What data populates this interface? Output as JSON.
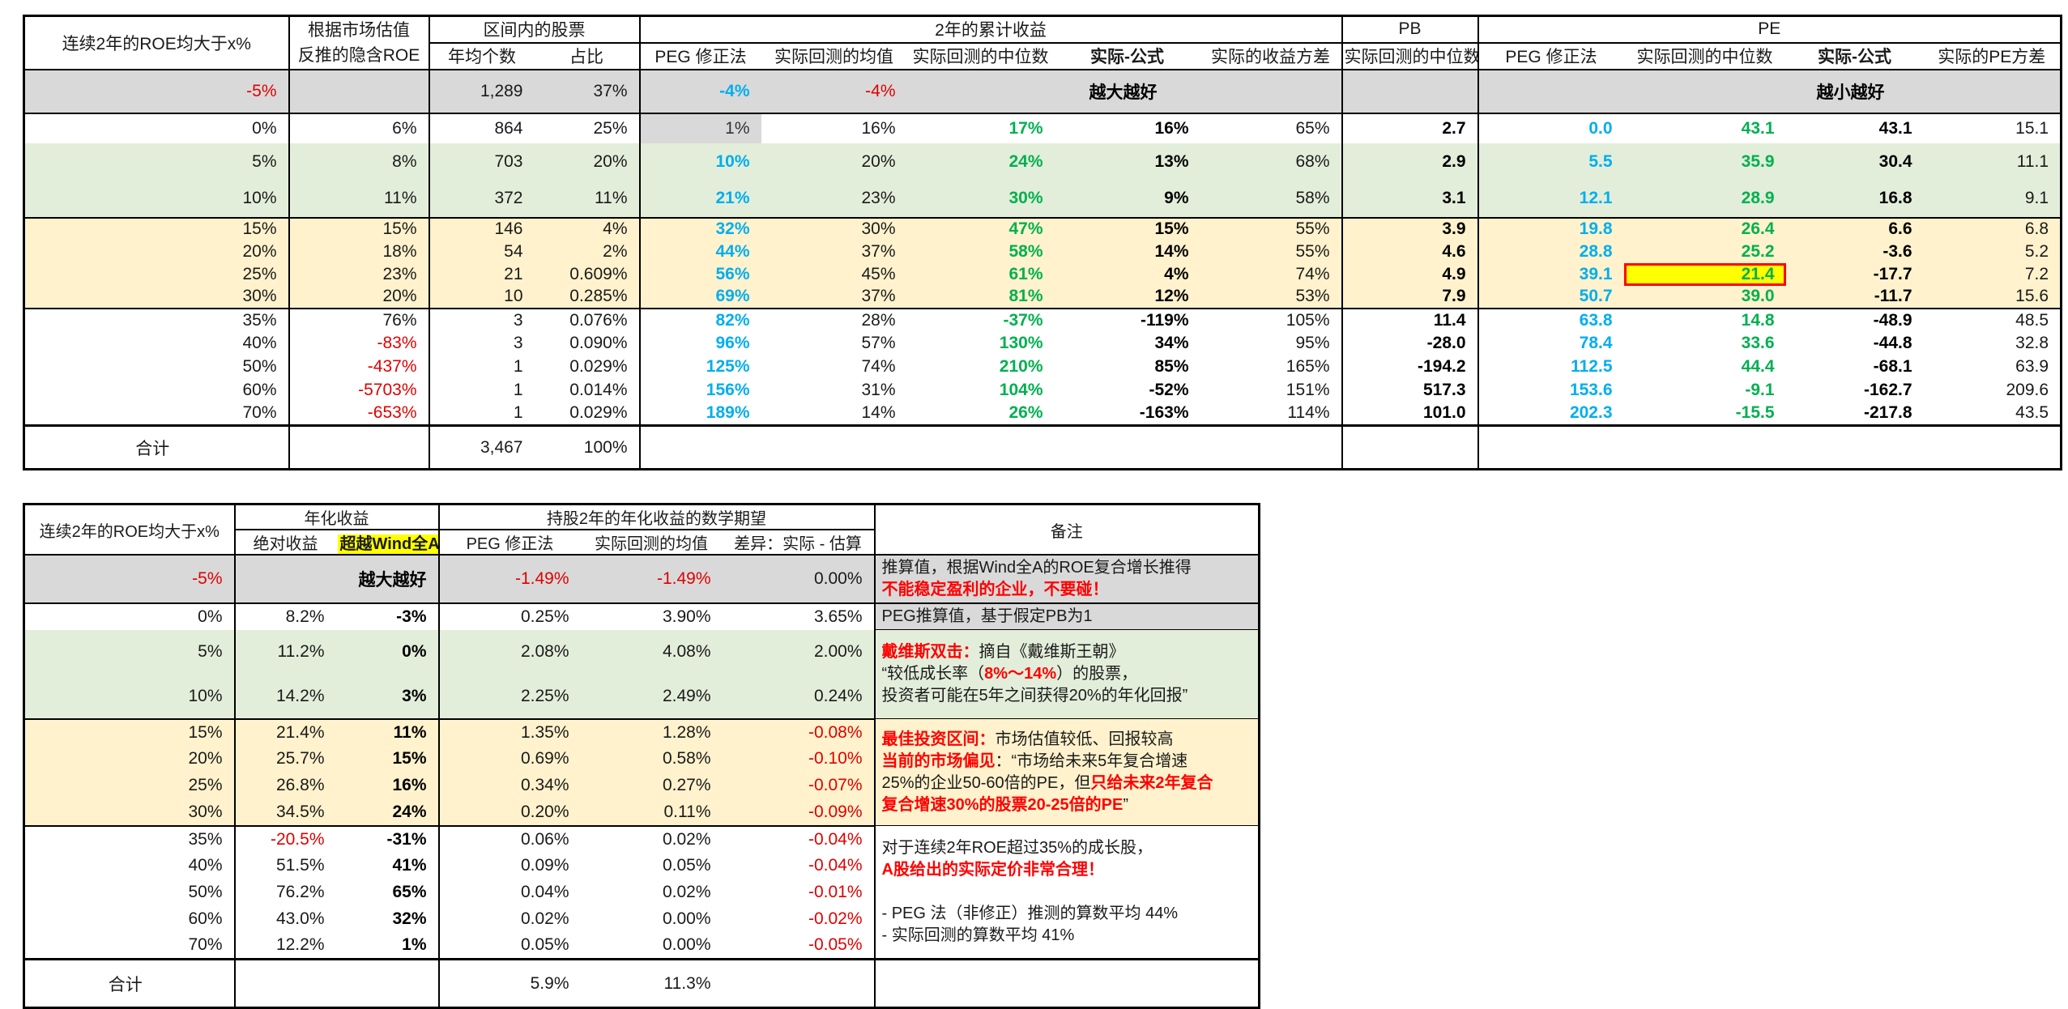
{
  "colors": {
    "positive_green": "#00b050",
    "estimate_blue": "#00aeef",
    "negative_red": "#e00000",
    "note_red": "#ff0000",
    "section_gray": "#d9d9d9",
    "section_green": "#e3eeda",
    "section_yellow": "#fff2cc",
    "highlight_yellow": "#ffff00",
    "highlight_border_red": "#ff0000"
  },
  "table1": {
    "header": {
      "col_roe": "连续2年的ROE均大于x%",
      "col_implied_l1": "根据市场估值",
      "col_implied_l2": "反推的隐含ROE",
      "grp_stocks": "区间内的股票",
      "col_count": "年均个数",
      "col_pct": "占比",
      "grp_cum": "2年的累计收益",
      "col_peg": "PEG 修正法",
      "col_mean": "实际回测的均值",
      "col_median": "实际回测的中位数",
      "col_diff": "实际-公式",
      "col_var": "实际的收益方差",
      "grp_pb": "PB",
      "col_pb_median": "实际回测的中位数",
      "grp_pe": "PE",
      "col_pe_peg": "PEG 修正法",
      "col_pe_median": "实际回测的中位数",
      "col_pe_diff": "实际-公式",
      "col_pe_var": "实际的PE方差"
    },
    "rows": [
      {
        "roe": "-5%",
        "implied": "",
        "count": "1,289",
        "pct": "37%",
        "peg": "-4%",
        "mean": "-4%",
        "median": "",
        "diff": "越大越好",
        "var": "",
        "pb": "",
        "pe_peg": "",
        "pe_median": "",
        "pe_diff": "越小越好",
        "pe_var": "",
        "bg": "gray",
        "flags": [
          "note-row",
          "sec-end"
        ]
      },
      {
        "roe": "0%",
        "implied": "6%",
        "count": "864",
        "pct": "25%",
        "peg": "1%",
        "mean": "16%",
        "median": "17%",
        "diff": "16%",
        "var": "65%",
        "pb": "2.7",
        "pe_peg": "0.0",
        "pe_median": "43.1",
        "pe_diff": "43.1",
        "pe_var": "15.1",
        "bg": "white",
        "cell_bg": {
          "peg": "gray"
        }
      },
      {
        "roe": "5%",
        "implied": "8%",
        "count": "703",
        "pct": "20%",
        "peg": "10%",
        "mean": "20%",
        "median": "24%",
        "diff": "13%",
        "var": "68%",
        "pb": "2.9",
        "pe_peg": "5.5",
        "pe_median": "35.9",
        "pe_diff": "30.4",
        "pe_var": "11.1",
        "bg": "green"
      },
      {
        "roe": "10%",
        "implied": "11%",
        "count": "372",
        "pct": "11%",
        "peg": "21%",
        "mean": "23%",
        "median": "30%",
        "diff": "9%",
        "var": "58%",
        "pb": "3.1",
        "pe_peg": "12.1",
        "pe_median": "28.9",
        "pe_diff": "16.8",
        "pe_var": "9.1",
        "bg": "green",
        "flags": [
          "sec-end"
        ]
      },
      {
        "roe": "15%",
        "implied": "15%",
        "count": "146",
        "pct": "4%",
        "peg": "32%",
        "mean": "30%",
        "median": "47%",
        "diff": "15%",
        "var": "55%",
        "pb": "3.9",
        "pe_peg": "19.8",
        "pe_median": "26.4",
        "pe_diff": "6.6",
        "pe_var": "6.8",
        "bg": "yellow"
      },
      {
        "roe": "20%",
        "implied": "18%",
        "count": "54",
        "pct": "2%",
        "peg": "44%",
        "mean": "37%",
        "median": "58%",
        "diff": "14%",
        "var": "55%",
        "pb": "4.6",
        "pe_peg": "28.8",
        "pe_median": "25.2",
        "pe_diff": "-3.6",
        "pe_var": "5.2",
        "bg": "yellow"
      },
      {
        "roe": "25%",
        "implied": "23%",
        "count": "21",
        "pct": "0.609%",
        "peg": "56%",
        "mean": "45%",
        "median": "61%",
        "diff": "4%",
        "var": "74%",
        "pb": "4.9",
        "pe_peg": "39.1",
        "pe_median": "21.4",
        "pe_diff": "-17.7",
        "pe_var": "7.2",
        "bg": "yellow",
        "cell_bg": {
          "pe_median": "hl"
        }
      },
      {
        "roe": "30%",
        "implied": "20%",
        "count": "10",
        "pct": "0.285%",
        "peg": "69%",
        "mean": "37%",
        "median": "81%",
        "diff": "12%",
        "var": "53%",
        "pb": "7.9",
        "pe_peg": "50.7",
        "pe_median": "39.0",
        "pe_diff": "-11.7",
        "pe_var": "15.6",
        "bg": "yellow",
        "flags": [
          "sec-end"
        ]
      },
      {
        "roe": "35%",
        "implied": "76%",
        "count": "3",
        "pct": "0.076%",
        "peg": "82%",
        "mean": "28%",
        "median": "-37%",
        "diff": "-119%",
        "var": "105%",
        "pb": "11.4",
        "pe_peg": "63.8",
        "pe_median": "14.8",
        "pe_diff": "-48.9",
        "pe_var": "48.5",
        "bg": "white"
      },
      {
        "roe": "40%",
        "implied": "-83%",
        "count": "3",
        "pct": "0.090%",
        "peg": "96%",
        "mean": "57%",
        "median": "130%",
        "diff": "34%",
        "var": "95%",
        "pb": "-28.0",
        "pe_peg": "78.4",
        "pe_median": "33.6",
        "pe_diff": "-44.8",
        "pe_var": "32.8",
        "bg": "white"
      },
      {
        "roe": "50%",
        "implied": "-437%",
        "count": "1",
        "pct": "0.029%",
        "peg": "125%",
        "mean": "74%",
        "median": "210%",
        "diff": "85%",
        "var": "165%",
        "pb": "-194.2",
        "pe_peg": "112.5",
        "pe_median": "44.4",
        "pe_diff": "-68.1",
        "pe_var": "63.9",
        "bg": "white"
      },
      {
        "roe": "60%",
        "implied": "-5703%",
        "count": "1",
        "pct": "0.014%",
        "peg": "156%",
        "mean": "31%",
        "median": "104%",
        "diff": "-52%",
        "var": "151%",
        "pb": "517.3",
        "pe_peg": "153.6",
        "pe_median": "-9.1",
        "pe_diff": "-162.7",
        "pe_var": "209.6",
        "bg": "white"
      },
      {
        "roe": "70%",
        "implied": "-653%",
        "count": "1",
        "pct": "0.029%",
        "peg": "189%",
        "mean": "14%",
        "median": "26%",
        "diff": "-163%",
        "var": "114%",
        "pb": "101.0",
        "pe_peg": "202.3",
        "pe_median": "-15.5",
        "pe_diff": "-217.8",
        "pe_var": "43.5",
        "bg": "white"
      }
    ],
    "total": {
      "label": "合计",
      "count": "3,467",
      "pct": "100%"
    }
  },
  "table2": {
    "header": {
      "col_roe": "连续2年的ROE均大于x%",
      "grp_ann": "年化收益",
      "col_abs": "绝对收益",
      "col_excess": "超越Wind全A",
      "grp_exp": "持股2年的年化收益的数学期望",
      "col_peg": "PEG 修正法",
      "col_mean": "实际回测的均值",
      "col_diff": "差异：实际 - 估算",
      "col_notes": "备注"
    },
    "rows": [
      {
        "roe": "-5%",
        "abs": "",
        "excess": "越大越好",
        "peg": "-1.49%",
        "mean": "-1.49%",
        "diff": "0.00%",
        "bg": "gray",
        "flags": [
          "note-row",
          "sec-end"
        ]
      },
      {
        "roe": "0%",
        "abs": "8.2%",
        "excess": "-3%",
        "peg": "0.25%",
        "mean": "3.90%",
        "diff": "3.65%",
        "bg": "white"
      },
      {
        "roe": "5%",
        "abs": "11.2%",
        "excess": "0%",
        "peg": "2.08%",
        "mean": "4.08%",
        "diff": "2.00%",
        "bg": "green"
      },
      {
        "roe": "10%",
        "abs": "14.2%",
        "excess": "3%",
        "peg": "2.25%",
        "mean": "2.49%",
        "diff": "0.24%",
        "bg": "green",
        "flags": [
          "sec-end"
        ]
      },
      {
        "roe": "15%",
        "abs": "21.4%",
        "excess": "11%",
        "peg": "1.35%",
        "mean": "1.28%",
        "diff": "-0.08%",
        "bg": "yellow"
      },
      {
        "roe": "20%",
        "abs": "25.7%",
        "excess": "15%",
        "peg": "0.69%",
        "mean": "0.58%",
        "diff": "-0.10%",
        "bg": "yellow"
      },
      {
        "roe": "25%",
        "abs": "26.8%",
        "excess": "16%",
        "peg": "0.34%",
        "mean": "0.27%",
        "diff": "-0.07%",
        "bg": "yellow"
      },
      {
        "roe": "30%",
        "abs": "34.5%",
        "excess": "24%",
        "peg": "0.20%",
        "mean": "0.11%",
        "diff": "-0.09%",
        "bg": "yellow",
        "flags": [
          "sec-end"
        ]
      },
      {
        "roe": "35%",
        "abs": "-20.5%",
        "excess": "-31%",
        "peg": "0.06%",
        "mean": "0.02%",
        "diff": "-0.04%",
        "bg": "white"
      },
      {
        "roe": "40%",
        "abs": "51.5%",
        "excess": "41%",
        "peg": "0.09%",
        "mean": "0.05%",
        "diff": "-0.04%",
        "bg": "white"
      },
      {
        "roe": "50%",
        "abs": "76.2%",
        "excess": "65%",
        "peg": "0.04%",
        "mean": "0.02%",
        "diff": "-0.01%",
        "bg": "white"
      },
      {
        "roe": "60%",
        "abs": "43.0%",
        "excess": "32%",
        "peg": "0.02%",
        "mean": "0.00%",
        "diff": "-0.02%",
        "bg": "white"
      },
      {
        "roe": "70%",
        "abs": "12.2%",
        "excess": "1%",
        "peg": "0.05%",
        "mean": "0.00%",
        "diff": "-0.05%",
        "bg": "white"
      }
    ],
    "notes": [
      {
        "row": 0,
        "span": 1,
        "bg": "gray",
        "lines": [
          [
            {
              "t": "推算值，根据Wind全A的ROE复合增长推得"
            }
          ],
          [
            {
              "t": "不能稳定盈利的企业，不要碰！",
              "s": "rb"
            }
          ]
        ]
      },
      {
        "row": 1,
        "span": 1,
        "bg": "gray",
        "lines": [
          [
            {
              "t": "PEG推算值，基于假定PB为1"
            }
          ]
        ]
      },
      {
        "row": 2,
        "span": 2,
        "bg": "green",
        "lines": [
          [
            {
              "t": "戴维斯双击：",
              "s": "rb"
            },
            {
              "t": "摘自《戴维斯王朝》"
            }
          ],
          [
            {
              "t": "“较低成长率（"
            },
            {
              "t": "8%～14%",
              "s": "rb"
            },
            {
              "t": "）的股票，"
            }
          ],
          [
            {
              "t": "投资者可能在5年之间获得20%的年化回报”"
            }
          ]
        ]
      },
      {
        "row": 4,
        "span": 4,
        "bg": "yellow",
        "lines": [
          [
            {
              "t": "最佳投资区间：",
              "s": "rb"
            },
            {
              "t": "市场估值较低、回报较高"
            }
          ],
          [
            {
              "t": "当前的市场偏见",
              "s": "rb"
            },
            {
              "t": "：“市场给未来5年复合增速"
            }
          ],
          [
            {
              "t": "25%的企业50-60倍的PE，但"
            },
            {
              "t": "只给未来2年复合",
              "s": "rb"
            }
          ],
          [
            {
              "t": "复合增速30%的股票20-25倍的PE",
              "s": "rb"
            },
            {
              "t": "”"
            }
          ]
        ]
      },
      {
        "row": 8,
        "span": 5,
        "bg": "white",
        "lines": [
          [
            {
              "t": "对于连续2年ROE超过35%的成长股，"
            }
          ],
          [
            {
              "t": "A股给出的实际定价非常合理！",
              "s": "rb"
            }
          ],
          [
            {
              "t": ""
            }
          ],
          [
            {
              "t": "- PEG 法（非修正）推测的算数平均 44%"
            }
          ],
          [
            {
              "t": "- 实际回测的算数平均 41%"
            }
          ]
        ]
      }
    ],
    "total": {
      "label": "合计",
      "peg": "5.9%",
      "mean": "11.3%"
    }
  }
}
